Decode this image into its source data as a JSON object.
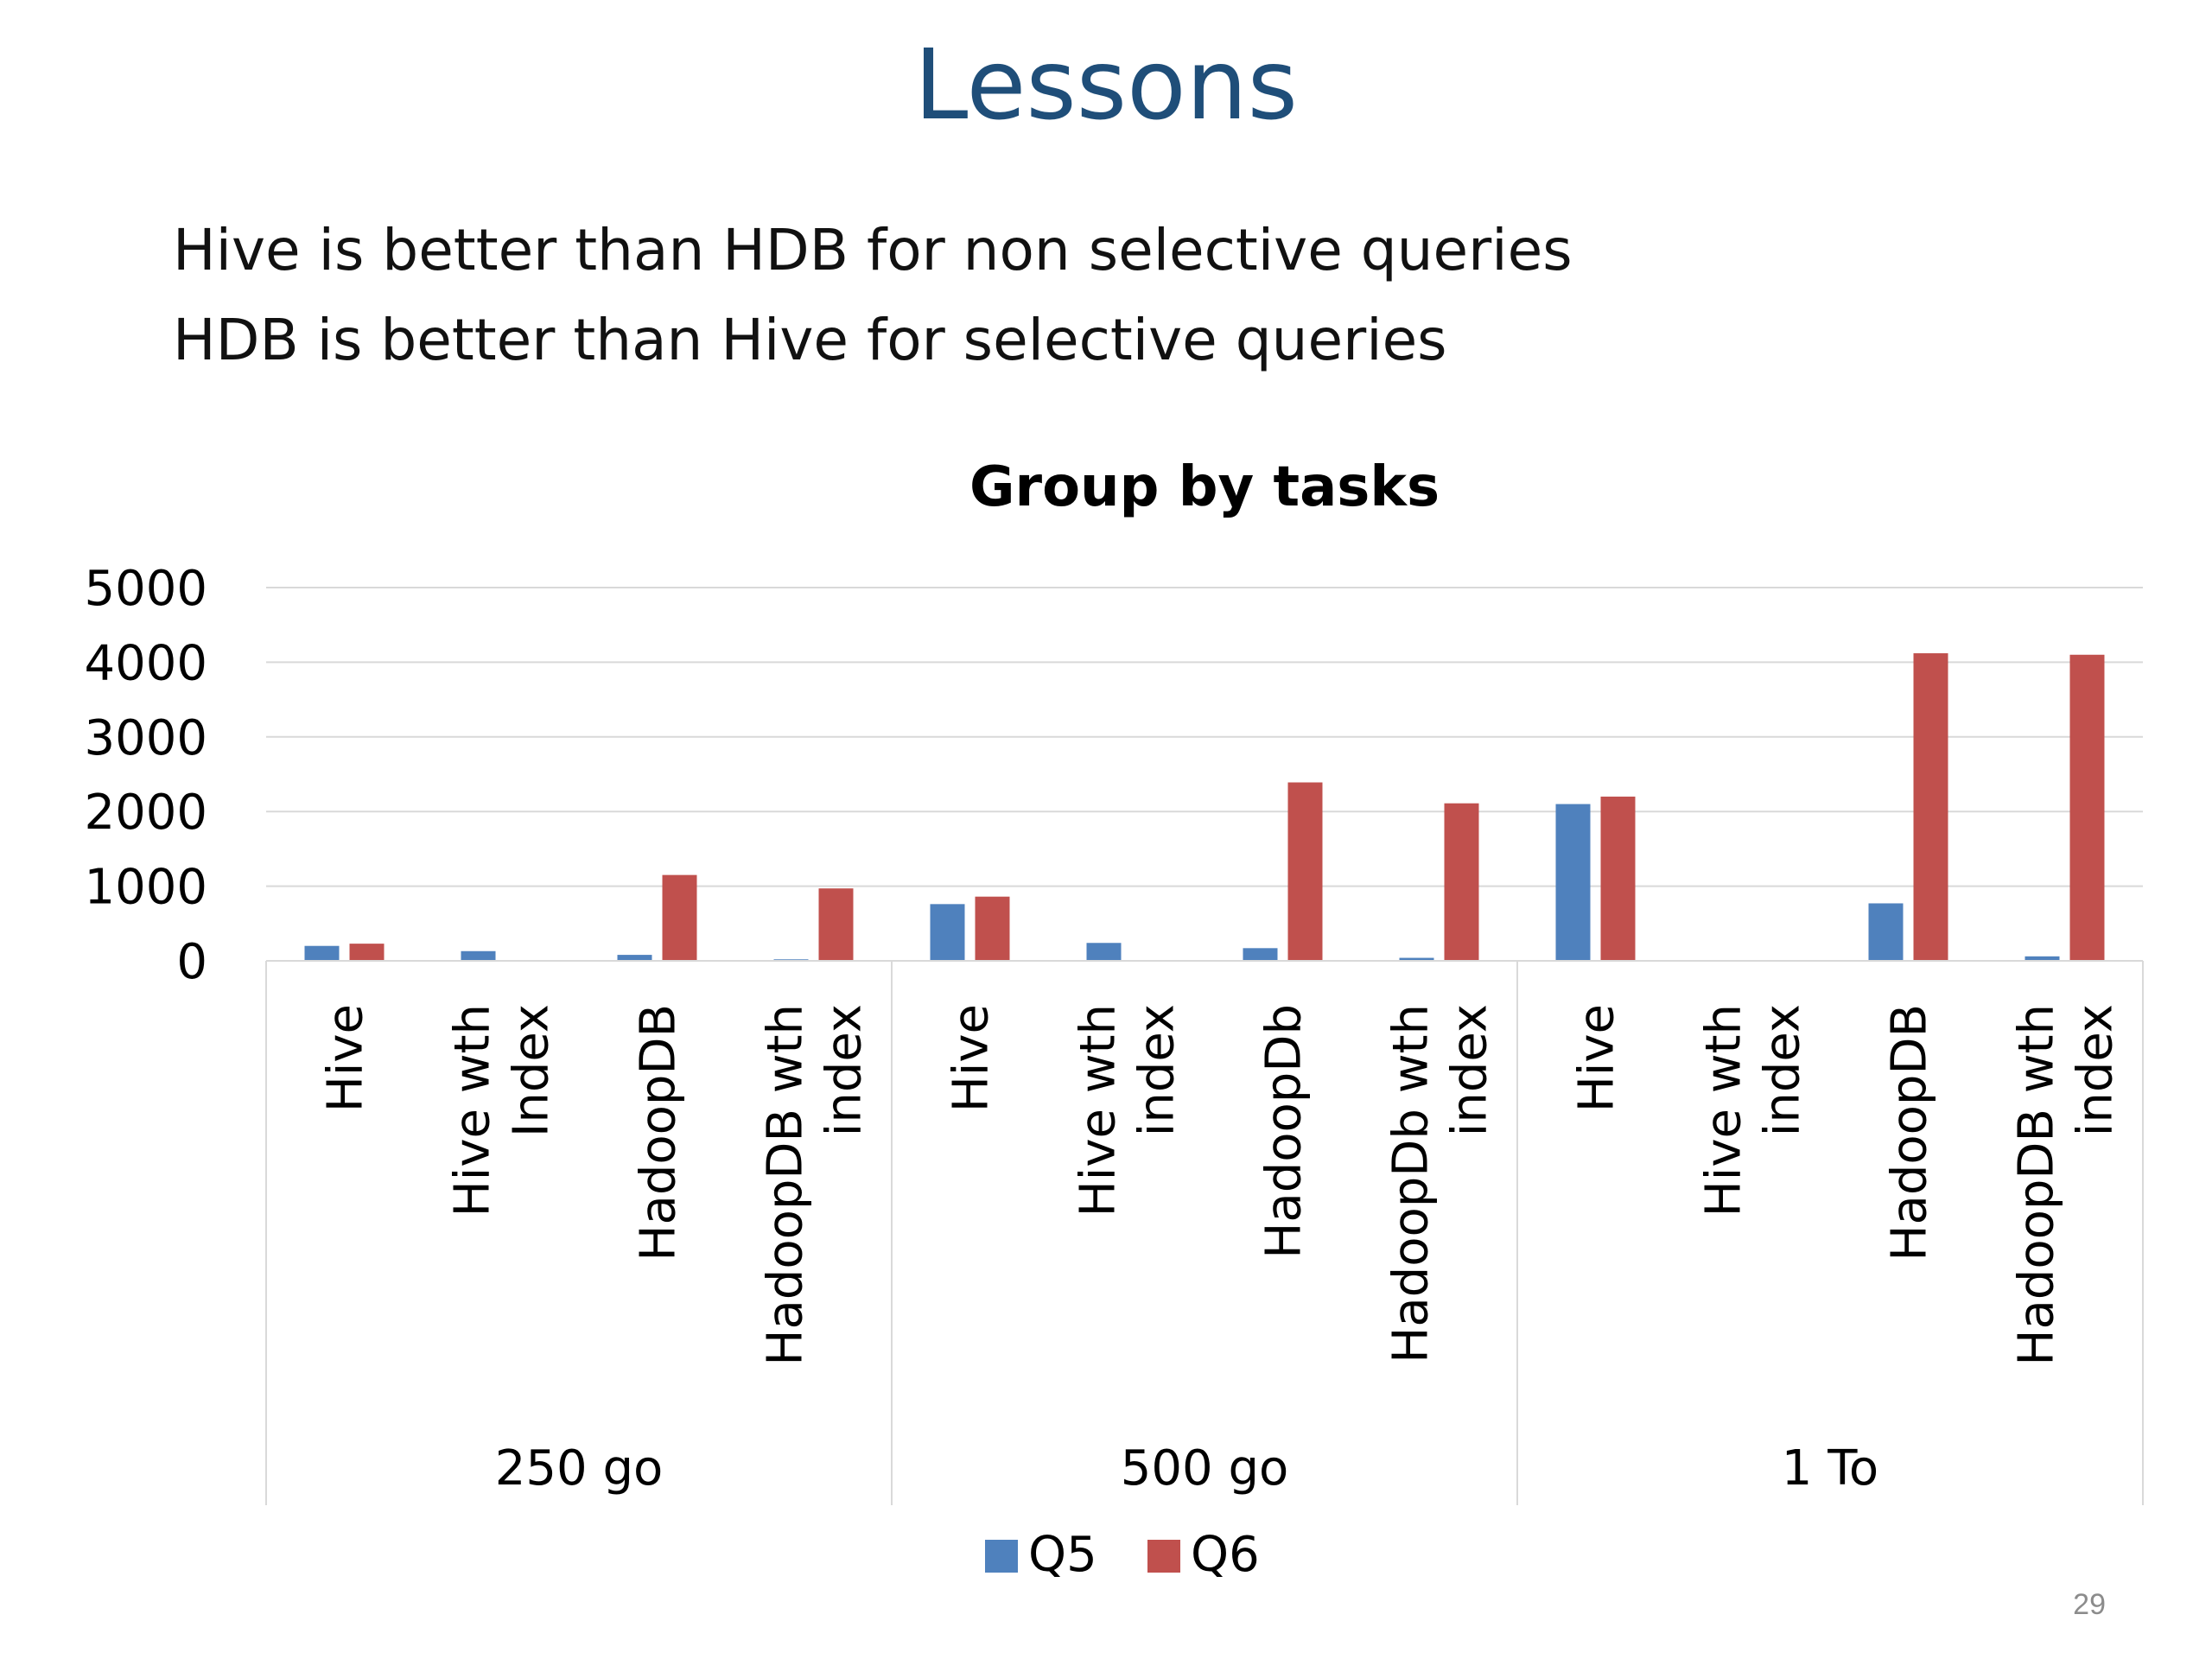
{
  "slide": {
    "title": "Lessons",
    "bullets": [
      "Hive is better than HDB for non selective queries",
      "HDB is better than Hive for selective queries"
    ],
    "page_number": "29"
  },
  "colors": {
    "title": "#1f4e79",
    "q5": "#4f81bd",
    "q6": "#c0504d",
    "grid": "#d9d9d9"
  },
  "chart_data": {
    "type": "bar",
    "title": "Group by tasks",
    "xlabel": "",
    "ylabel": "",
    "ylim": [
      0,
      5000
    ],
    "yticks": [
      0,
      1000,
      2000,
      3000,
      4000,
      5000
    ],
    "grid": true,
    "legend_position": "bottom",
    "groups": [
      {
        "label": "250 go",
        "categories": [
          "Hive",
          "Hive wth Index",
          "HadoopDB",
          "HadoopDB wth index"
        ]
      },
      {
        "label": "500 go",
        "categories": [
          "Hive",
          "Hive wth index",
          "HadoopDb",
          "HadoopDb wth index"
        ]
      },
      {
        "label": "1 To",
        "categories": [
          "Hive",
          "Hive wth index",
          "HadoopDB",
          "HadoopDB wth index"
        ]
      }
    ],
    "categories": [
      "Hive",
      "Hive wth Index",
      "HadoopDB",
      "HadoopDB wth index",
      "Hive",
      "Hive wth index",
      "HadoopDb",
      "HadoopDb wth index",
      "Hive",
      "Hive wth index",
      "HadoopDB",
      "HadoopDB wth index"
    ],
    "series": [
      {
        "name": "Q5",
        "values": [
          200,
          130,
          80,
          20,
          760,
          240,
          170,
          40,
          2100,
          0,
          770,
          60
        ]
      },
      {
        "name": "Q6",
        "values": [
          230,
          0,
          1150,
          970,
          860,
          0,
          2390,
          2110,
          2200,
          0,
          4120,
          4100
        ]
      }
    ]
  }
}
